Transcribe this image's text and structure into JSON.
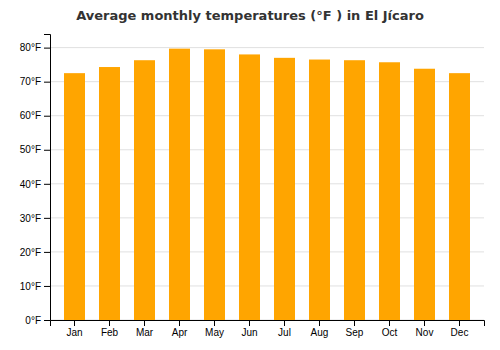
{
  "chart_data": {
    "type": "bar",
    "title": "Average monthly temperatures (°F ) in El Jícaro",
    "categories": [
      "Jan",
      "Feb",
      "Mar",
      "Apr",
      "May",
      "Jun",
      "Jul",
      "Aug",
      "Sep",
      "Oct",
      "Nov",
      "Dec"
    ],
    "values": [
      72.5,
      74.3,
      76.3,
      79.7,
      79.5,
      78.0,
      77.0,
      76.5,
      76.3,
      75.7,
      73.8,
      72.5
    ],
    "color": "#FFA500",
    "ylim": [
      0,
      84
    ],
    "yticks": [
      {
        "value": 0,
        "label": "0°F"
      },
      {
        "value": 10,
        "label": "10°F"
      },
      {
        "value": 20,
        "label": "20°F"
      },
      {
        "value": 30,
        "label": "30°F"
      },
      {
        "value": 40,
        "label": "40°F"
      },
      {
        "value": 50,
        "label": "50°F"
      },
      {
        "value": 60,
        "label": "60°F"
      },
      {
        "value": 70,
        "label": "70°F"
      },
      {
        "value": 80,
        "label": "80°F"
      }
    ],
    "grid": true
  }
}
